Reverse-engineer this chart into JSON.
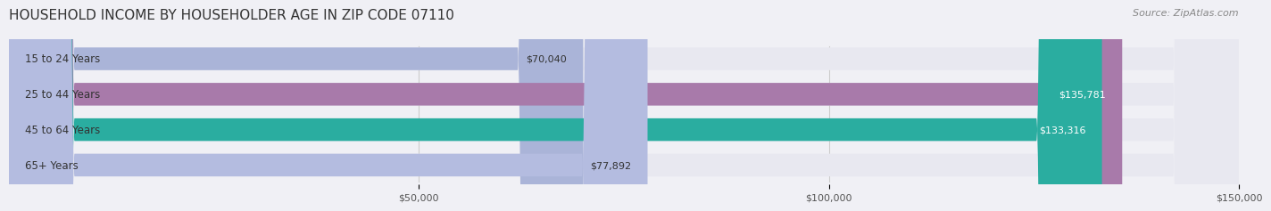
{
  "title": "HOUSEHOLD INCOME BY HOUSEHOLDER AGE IN ZIP CODE 07110",
  "source": "Source: ZipAtlas.com",
  "categories": [
    "15 to 24 Years",
    "25 to 44 Years",
    "45 to 64 Years",
    "65+ Years"
  ],
  "values": [
    70040,
    135781,
    133316,
    77892
  ],
  "bar_colors": [
    "#aab4d8",
    "#a87aaa",
    "#2aada0",
    "#b4bce0"
  ],
  "bar_label_colors": [
    "#333333",
    "#ffffff",
    "#ffffff",
    "#333333"
  ],
  "value_labels": [
    "$70,040",
    "$135,781",
    "$133,316",
    "$77,892"
  ],
  "xlim": [
    0,
    150000
  ],
  "xticks": [
    50000,
    100000,
    150000
  ],
  "xtick_labels": [
    "$50,000",
    "$100,000",
    "$150,000"
  ],
  "background_color": "#f0f0f5",
  "bar_bg_color": "#e8e8f0",
  "title_fontsize": 11,
  "source_fontsize": 8,
  "label_fontsize": 8.5,
  "value_fontsize": 8,
  "tick_fontsize": 8
}
